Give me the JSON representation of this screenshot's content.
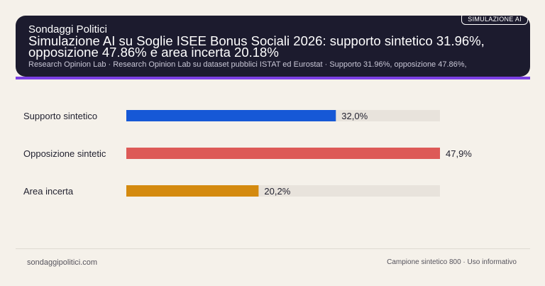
{
  "header": {
    "badge": "SIMULAZIONE AI",
    "brand": "Sondaggi Politici",
    "title": "Simulazione AI su Soglie ISEE Bonus Sociali 2026: supporto sintetico 31.96%, opposizione 47.86% e area incerta 20.18%",
    "subtitle": "Research Opinion Lab · Research Opinion Lab su dataset pubblici ISTAT ed Eurostat · Supporto 31.96%, opposizione 47.86%,"
  },
  "footer": {
    "left": "sondaggipolitici.com",
    "right": "Campione sintetico 800 · Uso informativo"
  },
  "colors": {
    "header_bg": "#1c1b2e",
    "accent": "#7b3fe4",
    "track": "#e8e3dc"
  },
  "chart_data": {
    "type": "bar",
    "orientation": "horizontal",
    "categories": [
      "Supporto sintetico",
      "Opposizione sintetic",
      "Area incerta"
    ],
    "values": [
      32.0,
      47.9,
      20.2
    ],
    "value_labels": [
      "32,0%",
      "47,9%",
      "20,2%"
    ],
    "colors": [
      "#1658d6",
      "#dd5a57",
      "#d48a0f"
    ],
    "xlim": [
      0,
      47.9
    ]
  }
}
